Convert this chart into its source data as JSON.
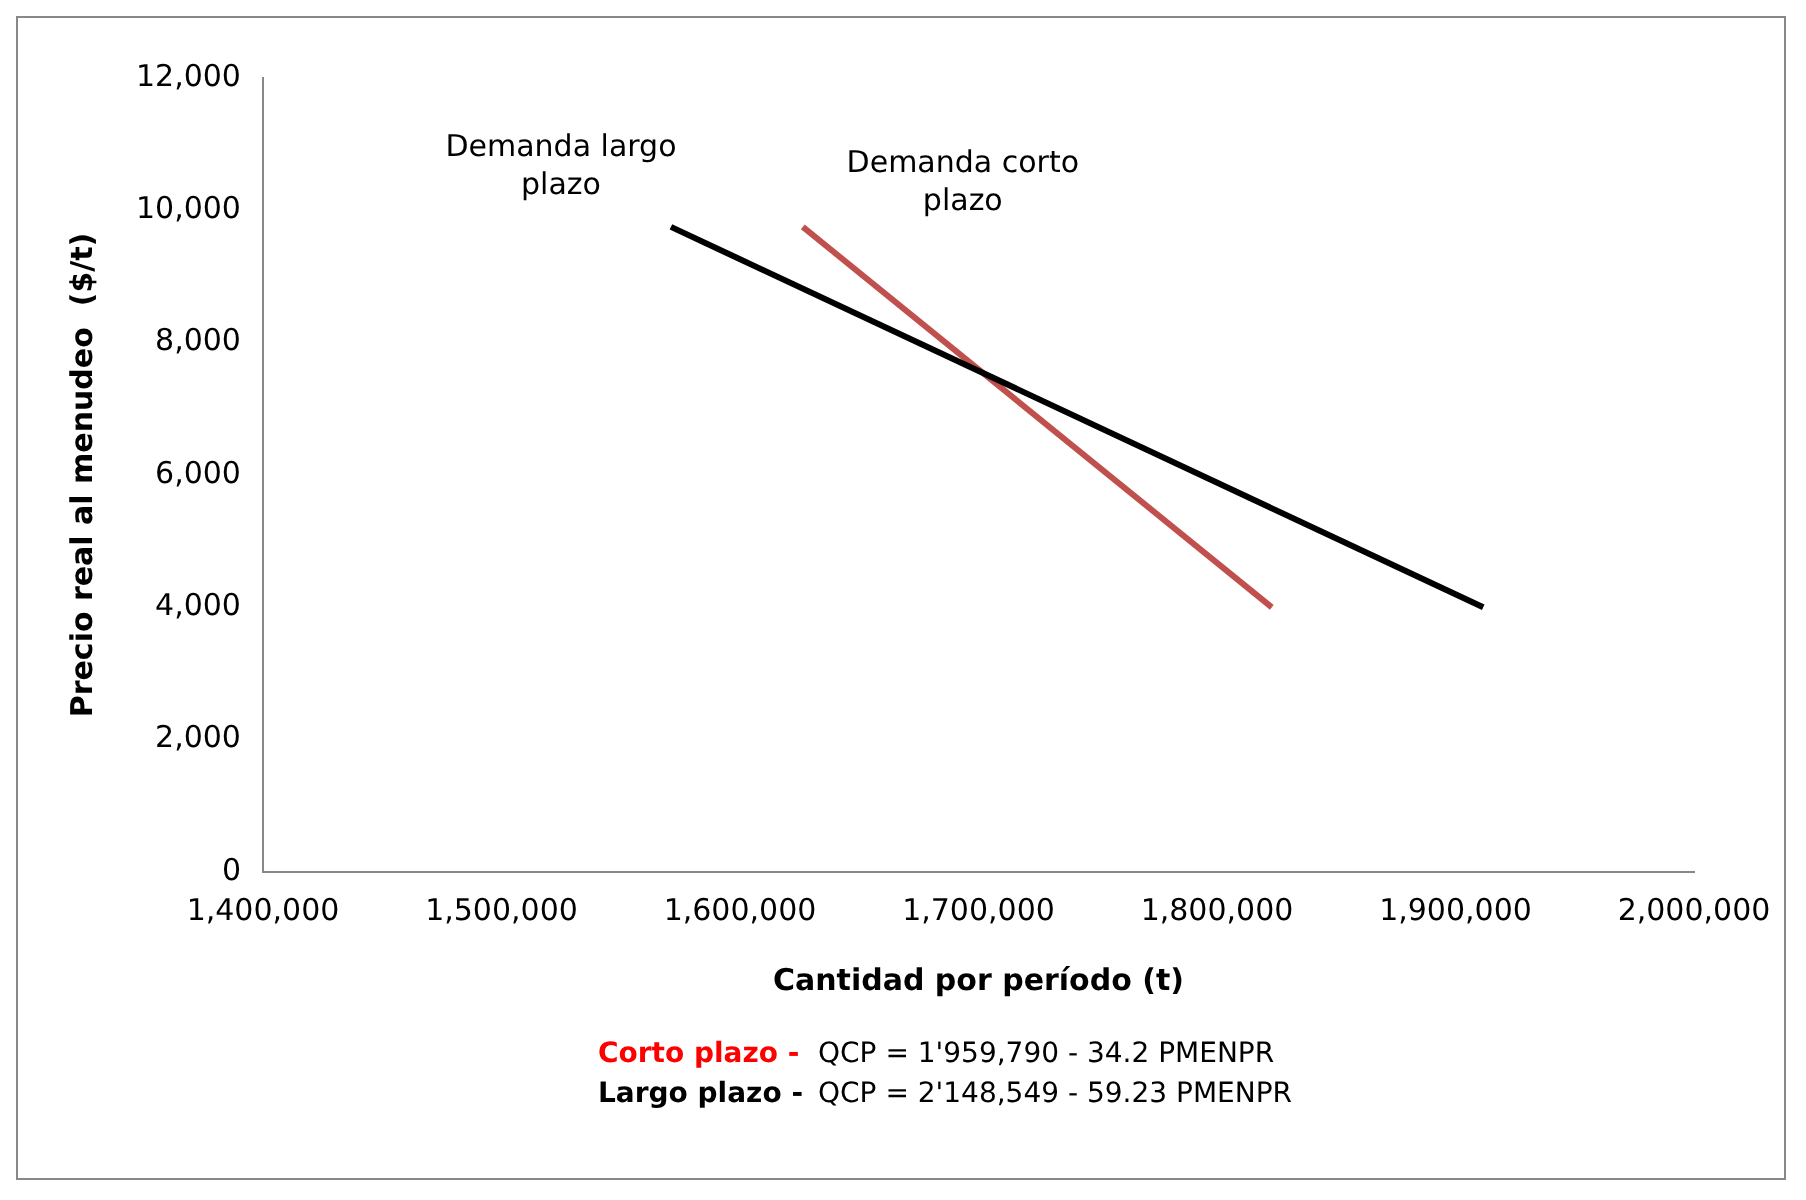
{
  "chart_data": {
    "type": "line",
    "xlabel": "Cantidad por período (t)",
    "ylabel": "Precio real al menudeo  ($/t)",
    "series": [
      {
        "name": "Demanda largo plazo",
        "color": "#000000",
        "x": [
          1571056.5,
          1911629
        ],
        "values": [
          9750,
          4000
        ]
      },
      {
        "name": "Demanda corto plazo",
        "color": "#c0504d",
        "x": [
          1626340,
          1822990
        ],
        "values": [
          9750,
          4000
        ]
      }
    ],
    "xlim": [
      1400000,
      2000000
    ],
    "xticks": [
      {
        "value": 1400000,
        "label": "1,400,000"
      },
      {
        "value": 1500000,
        "label": "1,500,000"
      },
      {
        "value": 1600000,
        "label": "1,600,000"
      },
      {
        "value": 1700000,
        "label": "1,700,000"
      },
      {
        "value": 1800000,
        "label": "1,800,000"
      },
      {
        "value": 1900000,
        "label": "1,900,000"
      },
      {
        "value": 2000000,
        "label": "2,000,000"
      }
    ],
    "ylim": [
      0,
      12000
    ],
    "yticks": [
      0,
      {
        "value": 2000,
        "label": "2,000"
      },
      {
        "value": 4000,
        "label": "4,000"
      },
      {
        "value": 6000,
        "label": "6,000"
      },
      {
        "value": 8000,
        "label": "8,000"
      },
      {
        "value": 10000,
        "label": "10,000"
      },
      {
        "value": 12000,
        "label": "12,000"
      }
    ],
    "grid": false,
    "legend": false,
    "marker": "none",
    "line_style": "solid",
    "annotations": [
      "Corto plazo -",
      "QCP = 1'959,790 - 34.2 PMENPR",
      "Largo plazo -",
      "QCP = 2'148,549 - 59.23 PMENPR"
    ]
  }
}
